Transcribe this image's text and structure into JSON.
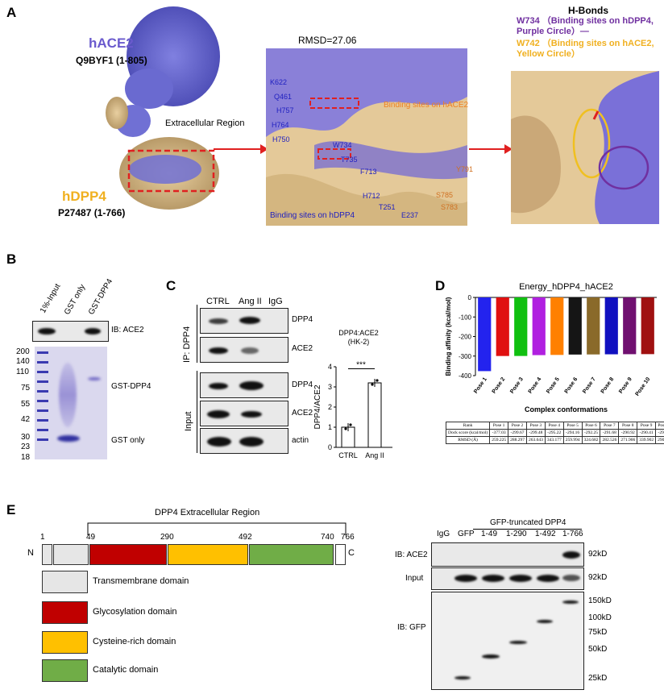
{
  "panelA": {
    "letter": "A",
    "hace2_name": "hACE2",
    "hace2_id": "Q9BYF1 (1-805)",
    "hdpp4_name": "hDPP4",
    "hdpp4_id": "P27487 (1-766)",
    "extracellular": "Extracellular Region",
    "rmsd": "RMSD=27.06",
    "binding_hace2": "Binding sites on hACE2",
    "binding_hdpp4": "Binding sites on hDPP4",
    "hbonds_title": "H-Bonds",
    "hbond1": "W734 （Binding sites on hDPP4, Purple Circle）—",
    "hbond2": "W742 （Binding sites on hACE2, Yellow Circle）",
    "residues_blue": [
      "K622",
      "Q461",
      "H757",
      "H764",
      "H750",
      "W734",
      "T735",
      "F713",
      "H712",
      "T251",
      "E237"
    ],
    "residues_orange": [
      "S785",
      "S783",
      "Y791"
    ]
  },
  "panelB": {
    "letter": "B",
    "lanes": [
      "1%-Input",
      "GST only",
      "GST-DPP4"
    ],
    "ib": "IB: ACE2",
    "markers": [
      "200",
      "140",
      "110",
      "75",
      "55",
      "42",
      "30",
      "23",
      "18"
    ],
    "gst_dpp4": "GST-DPP4",
    "gst_only": "GST only"
  },
  "panelC": {
    "letter": "C",
    "lanes": [
      "CTRL",
      "Ang II",
      "IgG"
    ],
    "ip_label": "IP:  DPP4",
    "input_label": "Input",
    "blot_labels": [
      "DPP4",
      "ACE2",
      "DPP4",
      "ACE2",
      "actin"
    ],
    "chart_title": "DPP4:ACE2\n(HK-2)",
    "sig": "***",
    "ylabel": "DPP4/ACE2"
  },
  "panelD": {
    "letter": "D",
    "table_header": [
      "Rank",
      "Pose 1",
      "Pose 2",
      "Pose 3",
      "Pose 4",
      "Pose 5",
      "Pose 6",
      "Pose 7",
      "Pose 8",
      "Pose 9",
      "Pose 10"
    ],
    "table_dock_label": "Dock score (kcal/mol)",
    "table_dock": [
      "-377.03",
      "-299.67",
      "-299.48",
      "-295.22",
      "-294.16",
      "-292.25",
      "-291.68",
      "-290.92",
      "-290.41",
      "-290.07"
    ],
    "table_rmsd_label": "RMSD (Å)",
    "table_rmsd": [
      "259.225",
      "288.297",
      "263.643",
      "343.177",
      "259.994",
      "324.682",
      "282.526",
      "271.906",
      "339.902",
      "290.586"
    ]
  },
  "chart_data": {
    "type": "bar",
    "title": "Energy_hDPP4_hACE2",
    "xlabel": "Complex conformations",
    "ylabel": "Binding affinity (kcal/mol)",
    "categories": [
      "Pose 1",
      "Pose 2",
      "Pose 3",
      "Pose 4",
      "Pose 5",
      "Pose 6",
      "Pose 7",
      "Pose 8",
      "Pose 9",
      "Pose 10"
    ],
    "values": [
      -377.03,
      -299.67,
      -299.48,
      -295.22,
      -294.16,
      -292.25,
      -291.68,
      -290.92,
      -290.41,
      -290.07
    ],
    "colors": [
      "#2323ee",
      "#e01010",
      "#10c010",
      "#b020e0",
      "#ff8000",
      "#151515",
      "#8a6a2a",
      "#1010c0",
      "#701070",
      "#a01010"
    ],
    "yticks": [
      0,
      -100,
      -200,
      -300,
      -400
    ],
    "ylim": [
      -400,
      0
    ]
  },
  "bar_chart_c": {
    "categories": [
      "CTRL",
      "Ang II"
    ],
    "values": [
      1.0,
      3.2
    ],
    "yticks": [
      0,
      1,
      2,
      3,
      4
    ],
    "ylim": [
      0,
      4
    ]
  },
  "panelE": {
    "letter": "E",
    "region_label": "DPP4 Extracellular Region",
    "positions": [
      "1",
      "49",
      "290",
      "492",
      "740",
      "766"
    ],
    "n_label": "N",
    "c_label": "C",
    "legend": [
      {
        "label": "Transmembrane domain",
        "color": "#e6e6e6"
      },
      {
        "label": "Glycosylation domain",
        "color": "#c00000"
      },
      {
        "label": "Cysteine-rich domain",
        "color": "#ffc000"
      },
      {
        "label": "Catalytic domain",
        "color": "#70ad47"
      }
    ],
    "blot_title": "GFP-truncated DPP4",
    "lanes": [
      "IgG",
      "GFP",
      "1-49",
      "1-290",
      "1-492",
      "1-766"
    ],
    "ib_ace2": "IB: ACE2",
    "input": "Input",
    "ib_gfp": "IB: GFP",
    "kd_right": [
      "92kD",
      "92kD",
      "150kD",
      "100kD",
      "75kD",
      "50kD",
      "25kD"
    ]
  }
}
